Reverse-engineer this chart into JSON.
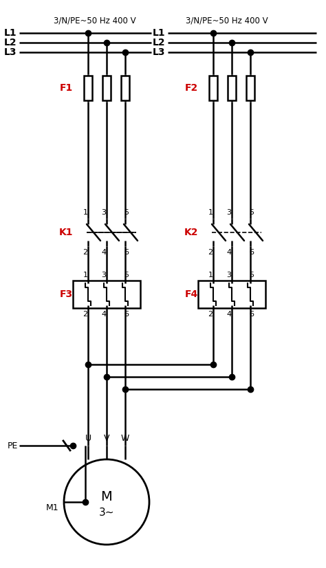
{
  "bg_color": "#ffffff",
  "line_color": "black",
  "label_color": "#cc0000",
  "title_left": "3/N/PE~50 Hz 400 V",
  "title_right": "3/N/PE~50 Hz 400 V",
  "left_lines": [
    "L1",
    "L2",
    "L3"
  ],
  "right_lines": [
    "L1",
    "L2",
    "L3"
  ],
  "fig_w": 4.74,
  "fig_h": 8.26,
  "dpi": 100
}
